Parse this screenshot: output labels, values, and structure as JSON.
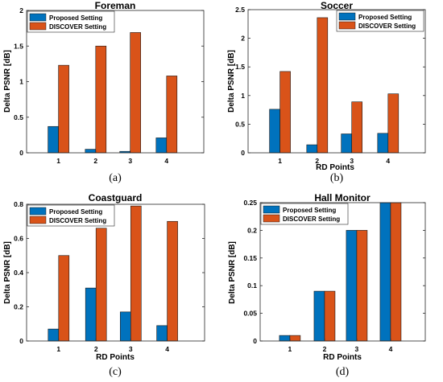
{
  "colors": {
    "proposed": "#0072BD",
    "discover": "#D95319"
  },
  "chart_data": [
    {
      "type": "bar",
      "title": "Foreman",
      "caption": "(a)",
      "xlabel": "",
      "ylabel": "Delta PSNR [dB]",
      "categories": [
        "1",
        "2",
        "3",
        "4"
      ],
      "ylim": [
        0,
        2
      ],
      "yticks": [
        0,
        0.5,
        1,
        1.5,
        2
      ],
      "ytick_labels": [
        "0",
        "0.5",
        "1",
        "1.5",
        "2"
      ],
      "legend": "top-left",
      "series": [
        {
          "name": "Proposed Setting",
          "values": [
            0.37,
            0.05,
            0.02,
            0.21
          ]
        },
        {
          "name": "DISCOVER Setting",
          "values": [
            1.23,
            1.5,
            1.69,
            1.08
          ]
        }
      ]
    },
    {
      "type": "bar",
      "title": "Soccer",
      "caption": "(b)",
      "xlabel": "RD Points",
      "ylabel": "Delta PSNR [dB]",
      "categories": [
        "1",
        "2",
        "3",
        "4"
      ],
      "ylim": [
        0,
        2.5
      ],
      "yticks": [
        0,
        0.5,
        1,
        1.5,
        2,
        2.5
      ],
      "ytick_labels": [
        "0",
        "0.5",
        "1",
        "1.5",
        "2",
        "2.5"
      ],
      "legend": "top-right",
      "series": [
        {
          "name": "Proposed Setting",
          "values": [
            0.76,
            0.14,
            0.33,
            0.34
          ]
        },
        {
          "name": "DISCOVER Setting",
          "values": [
            1.42,
            2.36,
            0.89,
            1.03
          ]
        }
      ]
    },
    {
      "type": "bar",
      "title": "Coastguard",
      "caption": "(c)",
      "xlabel": "RD Points",
      "ylabel": "Delta PSNR [dB]",
      "categories": [
        "1",
        "2",
        "3",
        "4"
      ],
      "ylim": [
        0,
        0.8
      ],
      "yticks": [
        0,
        0.2,
        0.4,
        0.6,
        0.8
      ],
      "ytick_labels": [
        "0",
        "0.2",
        "0.4",
        "0.6",
        "0.8"
      ],
      "legend": "top-left",
      "series": [
        {
          "name": "Proposed Setting",
          "values": [
            0.07,
            0.31,
            0.17,
            0.09
          ]
        },
        {
          "name": "DISCOVER Setting",
          "values": [
            0.5,
            0.66,
            0.79,
            0.7
          ]
        }
      ]
    },
    {
      "type": "bar",
      "title": "Hall Monitor",
      "caption": "(d)",
      "xlabel": "RD Points",
      "ylabel": "Delta PSNR [dB]",
      "categories": [
        "1",
        "2",
        "3",
        "4"
      ],
      "ylim": [
        0,
        0.25
      ],
      "yticks": [
        0,
        0.05,
        0.1,
        0.15,
        0.2,
        0.25
      ],
      "ytick_labels": [
        "0",
        "0.05",
        "0.1",
        "0.15",
        "0.2",
        "0.25"
      ],
      "legend": "top-left",
      "series": [
        {
          "name": "Proposed Setting",
          "values": [
            0.01,
            0.09,
            0.2,
            0.25
          ]
        },
        {
          "name": "DISCOVER Setting",
          "values": [
            0.01,
            0.09,
            0.2,
            0.25
          ]
        }
      ]
    }
  ]
}
